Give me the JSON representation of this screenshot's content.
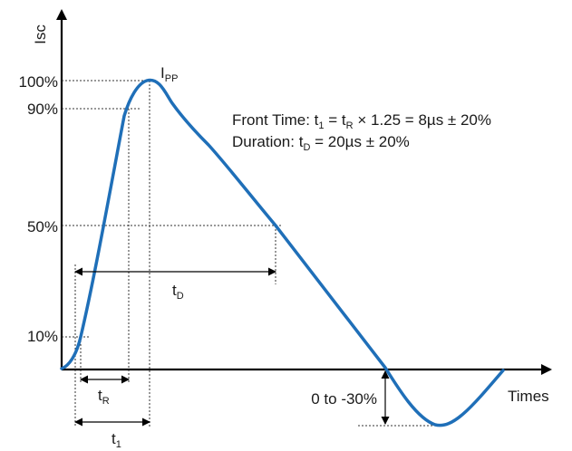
{
  "axes": {
    "y_label": "Isc",
    "x_label": "Times"
  },
  "levels": {
    "l100": "100%",
    "l90": "90%",
    "l50": "50%",
    "l10": "10%"
  },
  "peak_label": {
    "main": "I",
    "sub": "PP"
  },
  "formula": {
    "line1": {
      "a": "Front Time: t",
      "a_sub": "1",
      "b": " = t",
      "b_sub": "R",
      "c": " × 1.25 = 8µs ± 20%"
    },
    "line2": {
      "a": "Duration: t",
      "a_sub": "D",
      "b": " = 20µs ± 20%"
    }
  },
  "dimensions": {
    "tD": {
      "main": "t",
      "sub": "D"
    },
    "tR": {
      "main": "t",
      "sub": "R"
    },
    "t1": {
      "main": "t",
      "sub": "1"
    },
    "undershoot": "0 to -30%"
  },
  "colors": {
    "curve": "#1f6fb8",
    "axis": "#000000"
  }
}
